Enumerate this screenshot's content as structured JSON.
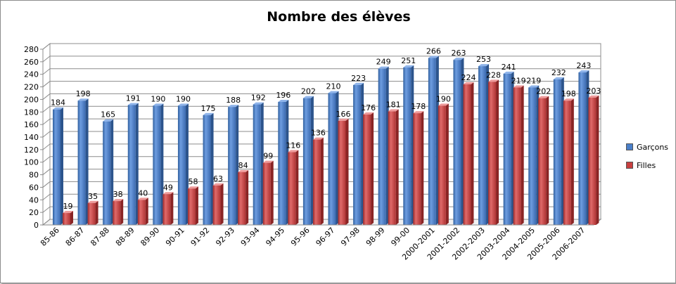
{
  "chart_data": {
    "type": "bar",
    "title": "Nombre des élèves",
    "categories": [
      "85-86",
      "86-87",
      "87-88",
      "88-89",
      "89-90",
      "90-91",
      "91-92",
      "92-93",
      "93-94",
      "94-95",
      "95-96",
      "96-97",
      "97-98",
      "98-99",
      "99-00",
      "2000-2001",
      "2001-2002",
      "2002-2003",
      "2003-2004",
      "2004-2005",
      "2005-2006",
      "2006-2007"
    ],
    "series": [
      {
        "name": "Garçons",
        "color": "#4a7fc9",
        "values": [
          184,
          198,
          165,
          191,
          190,
          190,
          175,
          188,
          192,
          196,
          202,
          210,
          223,
          249,
          251,
          266,
          263,
          253,
          241,
          219,
          232,
          243
        ]
      },
      {
        "name": "Filles",
        "color": "#c84040",
        "values": [
          19,
          35,
          38,
          40,
          49,
          58,
          63,
          84,
          99,
          116,
          136,
          166,
          176,
          181,
          178,
          190,
          224,
          228,
          219,
          202,
          198,
          203
        ]
      }
    ],
    "yticks": [
      0,
      20,
      40,
      60,
      80,
      100,
      120,
      140,
      160,
      180,
      200,
      220,
      240,
      260,
      280
    ],
    "ylim": [
      0,
      280
    ],
    "grid": true,
    "legend": "right",
    "style": "3d-clustered-column"
  }
}
